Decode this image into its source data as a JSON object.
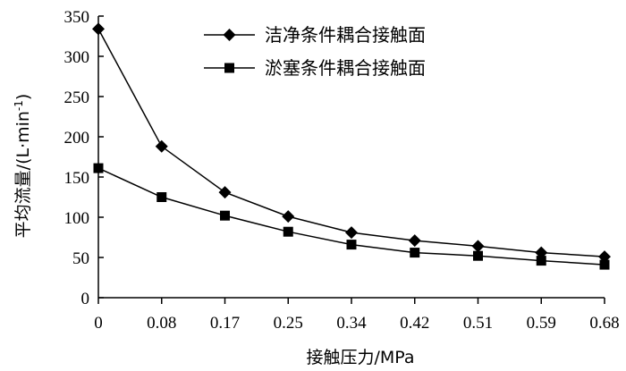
{
  "chart_data": {
    "type": "line",
    "categories": [
      "0",
      "0.08",
      "0.17",
      "0.25",
      "0.34",
      "0.42",
      "0.51",
      "0.59",
      "0.68"
    ],
    "series": [
      {
        "name": "洁净条件耦合接触面",
        "marker": "diamond",
        "values": [
          334,
          188,
          131,
          101,
          81,
          71,
          64,
          56,
          51
        ]
      },
      {
        "name": "淤塞条件耦合接触面",
        "marker": "square",
        "values": [
          161,
          125,
          102,
          82,
          66,
          56,
          52,
          46,
          41
        ]
      }
    ],
    "xlabel": "接触压力/MPa",
    "ylabel_main": "平均流量/(L·min",
    "ylabel_sup": "-1",
    "ylabel_close": ")",
    "ylim": [
      0,
      350
    ],
    "yticks": [
      "0",
      "50",
      "100",
      "150",
      "200",
      "250",
      "300",
      "350"
    ],
    "grid": false,
    "legend_position": "top-center"
  }
}
